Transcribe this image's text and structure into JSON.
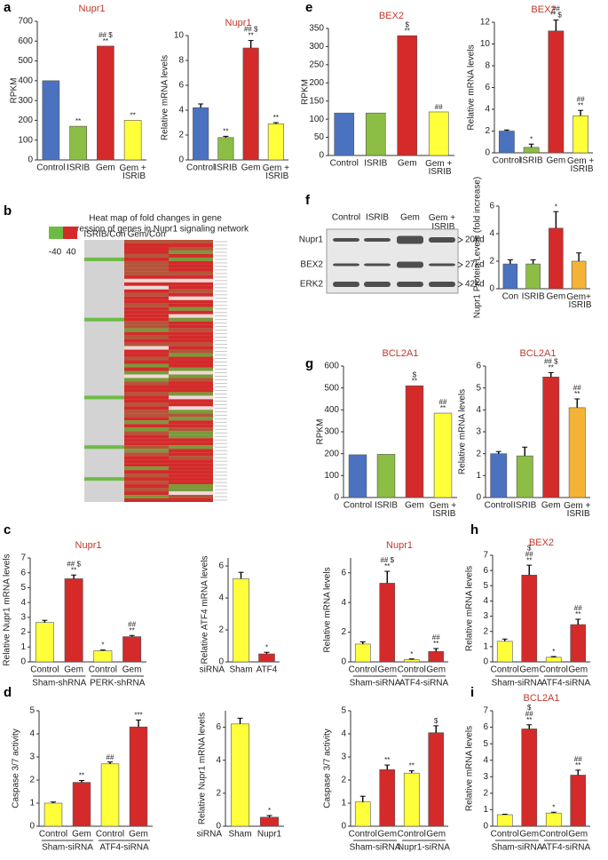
{
  "chart_data": [
    {
      "type": "bar",
      "panel": "a",
      "title": "Nupr1",
      "ylabel": "RPKM",
      "categories": [
        "Control",
        "ISRIB",
        "Gem",
        "Gem + ISRIB"
      ],
      "values": [
        400,
        170,
        575,
        200
      ],
      "colors": [
        "#4a72c0",
        "#8cbd45",
        "#d42a2a",
        "#ffff3a"
      ],
      "annotations": [
        null,
        [
          "**"
        ],
        [
          "## $",
          "**"
        ],
        [
          "**"
        ]
      ],
      "ylim": [
        0,
        700
      ],
      "yticks": [
        0,
        100,
        200,
        300,
        400,
        500,
        600,
        700
      ]
    },
    {
      "type": "bar",
      "title": "Nupr1",
      "ylabel": "Relative mRNA levels",
      "categories": [
        "Control",
        "ISRIB",
        "Gem",
        "Gem + ISRIB"
      ],
      "values": [
        4.2,
        1.8,
        9.0,
        2.9
      ],
      "errors": [
        0.3,
        0.1,
        0.6,
        0.1
      ],
      "colors": [
        "#4a72c0",
        "#8cbd45",
        "#d42a2a",
        "#ffff3a"
      ],
      "annotations": [
        null,
        [
          "**"
        ],
        [
          "## $",
          "**"
        ],
        [
          "**"
        ]
      ],
      "ylim": [
        0,
        10
      ],
      "yticks": [
        0,
        2,
        4,
        6,
        8,
        10
      ]
    },
    {
      "type": "heatmap",
      "panel": "b",
      "title": [
        "Heat map of fold changes in gene",
        "expression of genes in Nupr1 signaling network"
      ],
      "columns": [
        "ISRIB/Con",
        "Gem/Con"
      ],
      "colorbar": [
        -40,
        40
      ]
    },
    {
      "type": "bar",
      "panel": "c",
      "title": "Nupr1",
      "ylabel": "Relative Nupr1 mRNA levels",
      "categories": [
        "Control",
        "Gem",
        "Control",
        "Gem"
      ],
      "groups": [
        "Sham-shRNA",
        "PERK-shRNA"
      ],
      "values": [
        2.65,
        5.6,
        0.75,
        1.7
      ],
      "errors": [
        0.15,
        0.25,
        0.05,
        0.08
      ],
      "colors": [
        "#ffff3a",
        "#d42a2a",
        "#ffff3a",
        "#d42a2a"
      ],
      "annotations": [
        null,
        [
          "## $",
          "**"
        ],
        [
          "*"
        ],
        [
          "##",
          "**"
        ]
      ],
      "ylim": [
        0,
        7
      ],
      "yticks": [
        0,
        1,
        2,
        3,
        4,
        5,
        6,
        7
      ]
    },
    {
      "type": "bar",
      "ylabel": "Relative ATF4 mRNA levels",
      "x_prefix": "siRNA",
      "categories": [
        "Sham",
        "ATF4"
      ],
      "values": [
        5.2,
        0.5
      ],
      "errors": [
        0.4,
        0.1
      ],
      "colors": [
        "#ffff3a",
        "#d42a2a"
      ],
      "annotations": [
        null,
        [
          "*"
        ]
      ],
      "ylim": [
        0,
        6.5
      ],
      "yticks": [
        0,
        2,
        4,
        6
      ]
    },
    {
      "type": "bar",
      "title": "Nupr1",
      "ylabel": "Relative mRNA levels",
      "categories": [
        "Control",
        "Gem",
        "Control",
        "Gem"
      ],
      "groups": [
        "Sham-siRNA",
        "ATF4-siRNA"
      ],
      "values": [
        1.2,
        5.3,
        0.15,
        0.7
      ],
      "errors": [
        0.15,
        0.8,
        0.05,
        0.2
      ],
      "colors": [
        "#ffff3a",
        "#d42a2a",
        "#ffff3a",
        "#d42a2a"
      ],
      "annotations": [
        null,
        [
          "## $",
          "**"
        ],
        [
          "*"
        ],
        [
          "##",
          "**"
        ]
      ],
      "ylim": [
        0,
        7
      ],
      "yticks": [
        0,
        2,
        4,
        6
      ]
    },
    {
      "type": "bar",
      "panel": "d",
      "ylabel": "Caspase 3/7 activity",
      "categories": [
        "Control",
        "Gem",
        "Control",
        "Gem"
      ],
      "groups": [
        "Sham-siRNA",
        "ATF4-siRNA"
      ],
      "values": [
        1.0,
        1.9,
        2.7,
        4.3
      ],
      "errors": [
        0.05,
        0.08,
        0.08,
        0.3
      ],
      "colors": [
        "#ffff3a",
        "#d42a2a",
        "#ffff3a",
        "#d42a2a"
      ],
      "annotations": [
        null,
        [
          "**"
        ],
        [
          "##"
        ],
        [
          "***"
        ]
      ],
      "ylim": [
        0,
        5
      ],
      "yticks": [
        0,
        1,
        2,
        3,
        4,
        5
      ]
    },
    {
      "type": "bar",
      "ylabel": "Relative Nupr1 mRNA levels",
      "x_prefix": "siRNA",
      "categories": [
        "Sham",
        "Nupr1"
      ],
      "values": [
        6.2,
        0.55
      ],
      "errors": [
        0.35,
        0.1
      ],
      "colors": [
        "#ffff3a",
        "#d42a2a"
      ],
      "annotations": [
        null,
        [
          "*"
        ]
      ],
      "ylim": [
        0,
        7
      ],
      "yticks": [
        0,
        2,
        4,
        6
      ]
    },
    {
      "type": "bar",
      "ylabel": "Caspase 3/7 activity",
      "categories": [
        "Control",
        "Gem",
        "Control",
        "Gem"
      ],
      "groups": [
        "Sham-siRNA",
        "Nupr1-siRNA"
      ],
      "values": [
        1.05,
        2.45,
        2.3,
        4.05
      ],
      "errors": [
        0.25,
        0.2,
        0.1,
        0.3
      ],
      "colors": [
        "#ffff3a",
        "#d42a2a",
        "#ffff3a",
        "#d42a2a"
      ],
      "annotations": [
        null,
        [
          "**"
        ],
        [
          "**"
        ],
        [
          "$"
        ]
      ],
      "ylim": [
        0,
        5
      ],
      "yticks": [
        0,
        1,
        2,
        3,
        4,
        5
      ]
    },
    {
      "type": "bar",
      "panel": "e",
      "title": "BEX2",
      "ylabel": "RPKM",
      "categories": [
        "Control",
        "ISRIB",
        "Gem",
        "Gem + ISRIB"
      ],
      "values": [
        117,
        117,
        330,
        120
      ],
      "colors": [
        "#4a72c0",
        "#8cbd45",
        "#d42a2a",
        "#ffff3a"
      ],
      "annotations": [
        null,
        null,
        [
          "$",
          "**"
        ],
        [
          "##"
        ]
      ],
      "ylim": [
        0,
        350
      ],
      "yticks": [
        0,
        50,
        100,
        150,
        200,
        250,
        300,
        350
      ]
    },
    {
      "type": "bar",
      "title": "BEX2",
      "ylabel": "Relative mRNA levels",
      "categories": [
        "Control",
        "ISRIB",
        "Gem",
        "Gem + ISRIB"
      ],
      "values": [
        2.0,
        0.5,
        11.2,
        3.4
      ],
      "errors": [
        0.1,
        0.3,
        1.0,
        0.5
      ],
      "colors": [
        "#4a72c0",
        "#8cbd45",
        "#d42a2a",
        "#ffff3a"
      ],
      "annotations": [
        null,
        [
          "*"
        ],
        [
          "##",
          "** $"
        ],
        [
          "##",
          "**"
        ]
      ],
      "ylim": [
        0,
        12
      ],
      "yticks": [
        0,
        2,
        4,
        6,
        8,
        10,
        12
      ]
    },
    {
      "type": "blot",
      "panel": "f",
      "lanes": [
        "Control",
        "ISRIB",
        "Gem",
        "Gem + ISRIB"
      ],
      "bands": [
        "Nupr1",
        "BEX2",
        "ERK2"
      ],
      "sizes": [
        "20kd",
        "27kd",
        "42kd"
      ]
    },
    {
      "type": "bar",
      "ylabel": "Nupr1 Protein Levels (fold increase)",
      "categories": [
        "Con",
        "ISRIB",
        "Gem",
        "Gem+ ISRIB"
      ],
      "values": [
        1.8,
        1.8,
        4.4,
        2.0
      ],
      "errors": [
        0.3,
        0.3,
        1.2,
        0.6
      ],
      "colors": [
        "#4a72c0",
        "#8cbd45",
        "#d42a2a",
        "#f5b335"
      ],
      "annotations": [
        null,
        null,
        [
          "*"
        ],
        null
      ],
      "ylim": [
        0,
        6
      ],
      "yticks": [
        0,
        2,
        4,
        6
      ]
    },
    {
      "type": "bar",
      "panel": "g",
      "title": "BCL2A1",
      "ylabel": "RPKM",
      "categories": [
        "Control",
        "ISRIB",
        "Gem",
        "Gem + ISRIB"
      ],
      "values": [
        195,
        197,
        510,
        385
      ],
      "colors": [
        "#4a72c0",
        "#8cbd45",
        "#d42a2a",
        "#ffff3a"
      ],
      "annotations": [
        null,
        null,
        [
          "$",
          "**"
        ],
        [
          "##",
          "**"
        ]
      ],
      "ylim": [
        0,
        600
      ],
      "yticks": [
        0,
        100,
        200,
        300,
        400,
        500,
        600
      ]
    },
    {
      "type": "bar",
      "title": "BCL2A1",
      "ylabel": "Relative mRNA levels",
      "categories": [
        "Control",
        "ISRIB",
        "Gem",
        "Gem + ISRIB"
      ],
      "values": [
        2.0,
        1.9,
        5.5,
        4.1
      ],
      "errors": [
        0.1,
        0.4,
        0.2,
        0.4
      ],
      "colors": [
        "#4a72c0",
        "#8cbd45",
        "#d42a2a",
        "#f5b335"
      ],
      "annotations": [
        null,
        null,
        [
          "## $",
          "**"
        ],
        [
          "##",
          "**"
        ]
      ],
      "ylim": [
        0,
        6
      ],
      "yticks": [
        0,
        1,
        2,
        3,
        4,
        5,
        6
      ]
    },
    {
      "type": "bar",
      "panel": "h",
      "title": "BEX2",
      "ylabel": "Relative mRNA levels",
      "categories": [
        "Control",
        "Gem",
        "Control",
        "Gem"
      ],
      "groups": [
        "Sham-siRNA",
        "ATF4-siRNA"
      ],
      "values": [
        1.35,
        5.7,
        0.3,
        2.45
      ],
      "errors": [
        0.15,
        0.65,
        0.05,
        0.35
      ],
      "colors": [
        "#ffff3a",
        "#d42a2a",
        "#ffff3a",
        "#d42a2a"
      ],
      "annotations": [
        null,
        [
          "$",
          "##",
          "**"
        ],
        [
          "*"
        ],
        [
          "##",
          "**"
        ]
      ],
      "ylim": [
        0,
        7
      ],
      "yticks": [
        0,
        1,
        2,
        3,
        4,
        5,
        6,
        7
      ]
    },
    {
      "type": "bar",
      "panel": "i",
      "title": "BCL2A1",
      "ylabel": "Relative mRNA levels",
      "categories": [
        "Control",
        "Gem",
        "Control",
        "Gem"
      ],
      "groups": [
        "Sham-siRNA",
        "ATF4-siRNA"
      ],
      "values": [
        0.7,
        5.9,
        0.8,
        3.1
      ],
      "errors": [
        0.03,
        0.25,
        0.05,
        0.3
      ],
      "colors": [
        "#ffff3a",
        "#d42a2a",
        "#ffff3a",
        "#d42a2a"
      ],
      "annotations": [
        null,
        [
          "$",
          "##",
          "**"
        ],
        [
          "*"
        ],
        [
          "##",
          "**"
        ]
      ],
      "ylim": [
        0,
        7
      ],
      "yticks": [
        0,
        1,
        2,
        3,
        4,
        5,
        6,
        7
      ]
    }
  ]
}
